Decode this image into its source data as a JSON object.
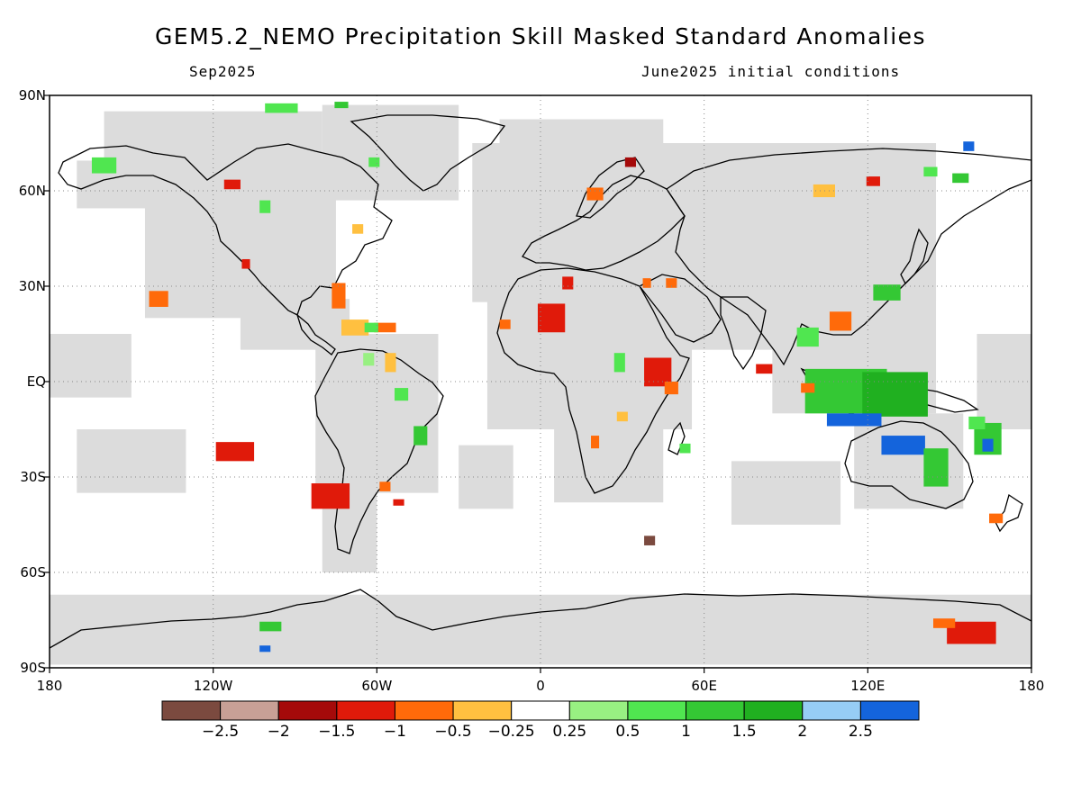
{
  "title": "GEM5.2_NEMO Precipitation Skill Masked Standard Anomalies",
  "subtitle_left": "Sep2025",
  "subtitle_right": "June2025 initial conditions",
  "map": {
    "projection": "equirectangular",
    "lon_range": [
      -180,
      180
    ],
    "lat_range": [
      -90,
      90
    ],
    "lon_ticks": [
      {
        "value": -180,
        "label": "180"
      },
      {
        "value": -120,
        "label": "120W"
      },
      {
        "value": -60,
        "label": "60W"
      },
      {
        "value": 0,
        "label": "0"
      },
      {
        "value": 60,
        "label": "60E"
      },
      {
        "value": 120,
        "label": "120E"
      },
      {
        "value": 180,
        "label": "180"
      }
    ],
    "lat_ticks": [
      {
        "value": 90,
        "label": "90N"
      },
      {
        "value": 60,
        "label": "60N"
      },
      {
        "value": 30,
        "label": "30N"
      },
      {
        "value": 0,
        "label": "EQ"
      },
      {
        "value": -30,
        "label": "30S"
      },
      {
        "value": -60,
        "label": "60S"
      },
      {
        "value": -90,
        "label": "90S"
      }
    ],
    "grid": "dotted",
    "mask_color": "#dcdcdc"
  },
  "colorbar": {
    "colors": [
      "#7b4a3f",
      "#c8a096",
      "#a50a0a",
      "#e01a0a",
      "#ff6a0a",
      "#ffc040",
      "#ffffff",
      "#98f082",
      "#50e650",
      "#34c834",
      "#20b020",
      "#96cdf5",
      "#1464dc"
    ],
    "labels": [
      "−2.5",
      "−2",
      "−1.5",
      "−1",
      "−0.5",
      "−0.25",
      "0.25",
      "0.5",
      "1",
      "1.5",
      "2",
      "2.5"
    ]
  },
  "anomalies": [
    {
      "lon": -140,
      "lat": 26,
      "w": 7,
      "h": 5,
      "color": "#ff6a0a"
    },
    {
      "lon": -112,
      "lat": -22,
      "w": 14,
      "h": 6,
      "color": "#e01a0a"
    },
    {
      "lon": -77,
      "lat": -36,
      "w": 14,
      "h": 8,
      "color": "#e01a0a"
    },
    {
      "lon": -74,
      "lat": 27,
      "w": 5,
      "h": 8,
      "color": "#ff6a0a"
    },
    {
      "lon": -68,
      "lat": 17,
      "w": 10,
      "h": 5,
      "color": "#ffc040"
    },
    {
      "lon": -57,
      "lat": 17,
      "w": 8,
      "h": 3,
      "color": "#ff6a0a"
    },
    {
      "lon": -62,
      "lat": 17,
      "w": 5,
      "h": 3,
      "color": "#50e650"
    },
    {
      "lon": -63,
      "lat": 7,
      "w": 4,
      "h": 4,
      "color": "#98f082"
    },
    {
      "lon": -55,
      "lat": 6,
      "w": 4,
      "h": 6,
      "color": "#ffc040"
    },
    {
      "lon": -51,
      "lat": -4,
      "w": 5,
      "h": 4,
      "color": "#50e650"
    },
    {
      "lon": -44,
      "lat": -17,
      "w": 5,
      "h": 6,
      "color": "#34c834"
    },
    {
      "lon": -57,
      "lat": -33,
      "w": 4,
      "h": 3,
      "color": "#ff6a0a"
    },
    {
      "lon": -52,
      "lat": -38,
      "w": 4,
      "h": 2,
      "color": "#e01a0a"
    },
    {
      "lon": -95,
      "lat": 86,
      "w": 12,
      "h": 3,
      "color": "#50e650"
    },
    {
      "lon": -73,
      "lat": 87,
      "w": 5,
      "h": 2,
      "color": "#34c834"
    },
    {
      "lon": -160,
      "lat": 68,
      "w": 9,
      "h": 5,
      "color": "#50e650"
    },
    {
      "lon": -113,
      "lat": 62,
      "w": 6,
      "h": 3,
      "color": "#e01a0a"
    },
    {
      "lon": -101,
      "lat": 55,
      "w": 4,
      "h": 4,
      "color": "#50e650"
    },
    {
      "lon": -67,
      "lat": 48,
      "w": 4,
      "h": 3,
      "color": "#ffc040"
    },
    {
      "lon": -108,
      "lat": 37,
      "w": 3,
      "h": 3,
      "color": "#e01a0a"
    },
    {
      "lon": -61,
      "lat": 69,
      "w": 4,
      "h": 3,
      "color": "#50e650"
    },
    {
      "lon": 4,
      "lat": 20,
      "w": 10,
      "h": 9,
      "color": "#e01a0a"
    },
    {
      "lon": 10,
      "lat": 31,
      "w": 4,
      "h": 4,
      "color": "#e01a0a"
    },
    {
      "lon": -13,
      "lat": 18,
      "w": 4,
      "h": 3,
      "color": "#ff6a0a"
    },
    {
      "lon": 43,
      "lat": 3,
      "w": 10,
      "h": 9,
      "color": "#e01a0a"
    },
    {
      "lon": 48,
      "lat": -2,
      "w": 5,
      "h": 4,
      "color": "#ff6a0a"
    },
    {
      "lon": 29,
      "lat": 6,
      "w": 4,
      "h": 6,
      "color": "#50e650"
    },
    {
      "lon": 30,
      "lat": -11,
      "w": 4,
      "h": 3,
      "color": "#ffc040"
    },
    {
      "lon": 20,
      "lat": -19,
      "w": 3,
      "h": 4,
      "color": "#ff6a0a"
    },
    {
      "lon": 53,
      "lat": -21,
      "w": 4,
      "h": 3,
      "color": "#50e650"
    },
    {
      "lon": 20,
      "lat": 59,
      "w": 6,
      "h": 4,
      "color": "#ff6a0a"
    },
    {
      "lon": 33,
      "lat": 69,
      "w": 4,
      "h": 3,
      "color": "#a50a0a"
    },
    {
      "lon": 48,
      "lat": 31,
      "w": 4,
      "h": 3,
      "color": "#ff6a0a"
    },
    {
      "lon": 39,
      "lat": 31,
      "w": 3,
      "h": 3,
      "color": "#ff6a0a"
    },
    {
      "lon": 82,
      "lat": 4,
      "w": 6,
      "h": 3,
      "color": "#e01a0a"
    },
    {
      "lon": 104,
      "lat": 60,
      "w": 8,
      "h": 4,
      "color": "#ffc040"
    },
    {
      "lon": 122,
      "lat": 63,
      "w": 5,
      "h": 3,
      "color": "#e01a0a"
    },
    {
      "lon": 143,
      "lat": 66,
      "w": 5,
      "h": 3,
      "color": "#50e650"
    },
    {
      "lon": 154,
      "lat": 64,
      "w": 6,
      "h": 3,
      "color": "#34c834"
    },
    {
      "lon": 157,
      "lat": 74,
      "w": 4,
      "h": 3,
      "color": "#1464dc"
    },
    {
      "lon": 127,
      "lat": 28,
      "w": 10,
      "h": 5,
      "color": "#34c834"
    },
    {
      "lon": 110,
      "lat": 19,
      "w": 8,
      "h": 6,
      "color": "#ff6a0a"
    },
    {
      "lon": 98,
      "lat": 14,
      "w": 8,
      "h": 6,
      "color": "#50e650"
    },
    {
      "lon": 112,
      "lat": -3,
      "w": 30,
      "h": 14,
      "color": "#34c834"
    },
    {
      "lon": 130,
      "lat": -4,
      "w": 24,
      "h": 14,
      "color": "#20b020"
    },
    {
      "lon": 115,
      "lat": -12,
      "w": 20,
      "h": 4,
      "color": "#1464dc"
    },
    {
      "lon": 133,
      "lat": -20,
      "w": 16,
      "h": 6,
      "color": "#1464dc"
    },
    {
      "lon": 145,
      "lat": -27,
      "w": 9,
      "h": 12,
      "color": "#34c834"
    },
    {
      "lon": 164,
      "lat": -18,
      "w": 10,
      "h": 10,
      "color": "#34c834"
    },
    {
      "lon": 164,
      "lat": -20,
      "w": 4,
      "h": 4,
      "color": "#1464dc"
    },
    {
      "lon": 160,
      "lat": -13,
      "w": 6,
      "h": 4,
      "color": "#50e650"
    },
    {
      "lon": 98,
      "lat": -2,
      "w": 5,
      "h": 3,
      "color": "#ff6a0a"
    },
    {
      "lon": 167,
      "lat": -43,
      "w": 5,
      "h": 3,
      "color": "#ff6a0a"
    },
    {
      "lon": 158,
      "lat": -79,
      "w": 18,
      "h": 7,
      "color": "#e01a0a"
    },
    {
      "lon": 148,
      "lat": -76,
      "w": 8,
      "h": 3,
      "color": "#ff6a0a"
    },
    {
      "lon": -99,
      "lat": -77,
      "w": 8,
      "h": 3,
      "color": "#34c834"
    },
    {
      "lon": -101,
      "lat": -84,
      "w": 4,
      "h": 2,
      "color": "#1464dc"
    },
    {
      "lon": 40,
      "lat": -50,
      "w": 4,
      "h": 3,
      "color": "#7b4a3f"
    }
  ],
  "mask": [
    {
      "lon": -110,
      "lat": 45,
      "w": 70,
      "h": 50
    },
    {
      "lon": -55,
      "lat": 72,
      "w": 50,
      "h": 30
    },
    {
      "lon": -120,
      "lat": 75,
      "w": 80,
      "h": 20
    },
    {
      "lon": -155,
      "lat": 62,
      "w": 30,
      "h": 15
    },
    {
      "lon": -90,
      "lat": 18,
      "w": 40,
      "h": 16
    },
    {
      "lon": -60,
      "lat": -10,
      "w": 45,
      "h": 50
    },
    {
      "lon": -70,
      "lat": -45,
      "w": 20,
      "h": 30
    },
    {
      "lon": 18,
      "lat": 10,
      "w": 75,
      "h": 50
    },
    {
      "lon": 25,
      "lat": -18,
      "w": 40,
      "h": 40
    },
    {
      "lon": 60,
      "lat": 50,
      "w": 170,
      "h": 50
    },
    {
      "lon": 80,
      "lat": 25,
      "w": 70,
      "h": 30
    },
    {
      "lon": 115,
      "lat": 10,
      "w": 60,
      "h": 40
    },
    {
      "lon": 135,
      "lat": -25,
      "w": 40,
      "h": 30
    },
    {
      "lon": 15,
      "lat": 75,
      "w": 60,
      "h": 15
    },
    {
      "lon": 0,
      "lat": -78,
      "w": 360,
      "h": 22
    },
    {
      "lon": -150,
      "lat": -25,
      "w": 40,
      "h": 20
    },
    {
      "lon": -165,
      "lat": 5,
      "w": 30,
      "h": 20
    },
    {
      "lon": 170,
      "lat": 0,
      "w": 20,
      "h": 30
    },
    {
      "lon": -20,
      "lat": -30,
      "w": 20,
      "h": 20
    },
    {
      "lon": 90,
      "lat": -35,
      "w": 40,
      "h": 20
    }
  ]
}
